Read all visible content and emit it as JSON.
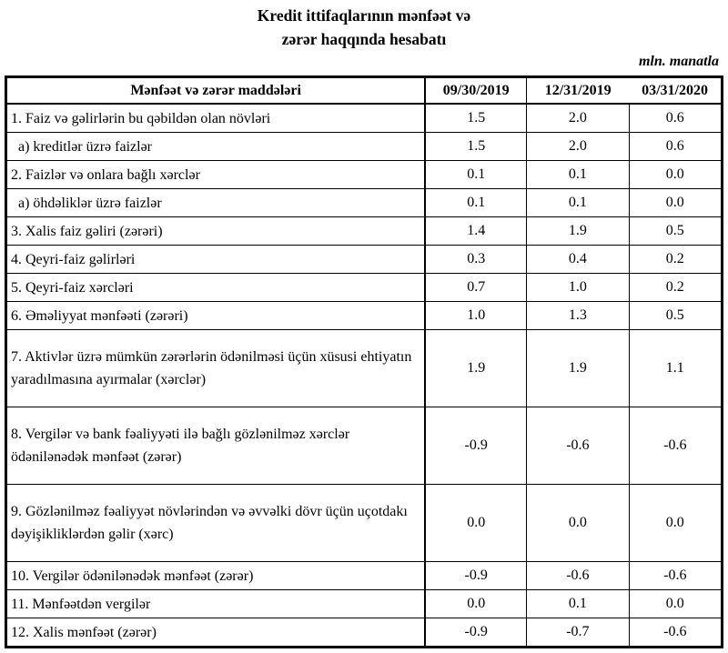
{
  "title": {
    "line1": "Kredit ittifaqlarının mənfəət və",
    "line2": "zərər haqqında hesabatı"
  },
  "unit_note": "mln. manatla",
  "table": {
    "header": {
      "label": "Mənfəət və zərər maddələri",
      "columns": [
        "09/30/2019",
        "12/31/2019",
        "03/31/2020"
      ]
    },
    "rows": [
      {
        "label": "1. Faiz və gəlirlərin bu qəbildən olan növləri",
        "indent": false,
        "tall": false,
        "values": [
          "1.5",
          "2.0",
          "0.6"
        ]
      },
      {
        "label": "a) kreditlər üzrə faizlər",
        "indent": true,
        "tall": false,
        "values": [
          "1.5",
          "2.0",
          "0.6"
        ]
      },
      {
        "label": "2. Faizlər və onlara bağlı xərclər",
        "indent": false,
        "tall": false,
        "values": [
          "0.1",
          "0.1",
          "0.0"
        ]
      },
      {
        "label": "a) öhdəliklər üzrə faizlər",
        "indent": true,
        "tall": false,
        "values": [
          "0.1",
          "0.1",
          "0.0"
        ]
      },
      {
        "label": "3. Xalis faiz gəliri (zərəri)",
        "indent": false,
        "tall": false,
        "values": [
          "1.4",
          "1.9",
          "0.5"
        ]
      },
      {
        "label": "4. Qeyri-faiz gəlirləri",
        "indent": false,
        "tall": false,
        "values": [
          "0.3",
          "0.4",
          "0.2"
        ]
      },
      {
        "label": "5. Qeyri-faiz xərcləri",
        "indent": false,
        "tall": false,
        "values": [
          "0.7",
          "1.0",
          "0.2"
        ]
      },
      {
        "label": "6. Əməliyyat mənfəəti (zərəri)",
        "indent": false,
        "tall": false,
        "values": [
          "1.0",
          "1.3",
          "0.5"
        ]
      },
      {
        "label": "7. Aktivlər üzrə mümkün zərərlərin ödənilməsi üçün xüsusi ehtiyatın yaradılmasına ayırmalar (xərclər)",
        "indent": false,
        "tall": true,
        "values": [
          "1.9",
          "1.9",
          "1.1"
        ]
      },
      {
        "label": "8. Vergilər və bank fəaliyyəti ilə bağlı gözlənilməz xərclər ödənilənədək mənfəət (zərər)",
        "indent": false,
        "tall": true,
        "values": [
          "-0.9",
          "-0.6",
          "-0.6"
        ]
      },
      {
        "label": "9. Gözlənilməz fəaliyyət növlərindən və əvvəlki dövr üçün uçotdakı dəyişikliklərdən gəlir (xərc)",
        "indent": false,
        "tall": true,
        "values": [
          "0.0",
          "0.0",
          "0.0"
        ]
      },
      {
        "label": "10. Vergilər ödənilənədək mənfəət (zərər)",
        "indent": false,
        "tall": false,
        "values": [
          "-0.9",
          "-0.6",
          "-0.6"
        ]
      },
      {
        "label": "11. Mənfəətdən vergilər",
        "indent": false,
        "tall": false,
        "values": [
          "0.0",
          "0.1",
          "0.0"
        ]
      },
      {
        "label": "12. Xalis mənfəət (zərər)",
        "indent": false,
        "tall": false,
        "values": [
          "-0.9",
          "-0.7",
          "-0.6"
        ]
      }
    ]
  },
  "colors": {
    "border": "#000000",
    "text": "#000000",
    "background": "#ffffff"
  }
}
